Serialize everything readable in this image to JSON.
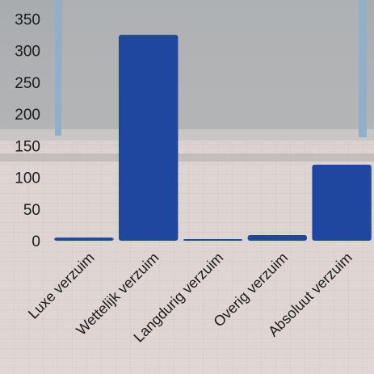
{
  "chart_data": {
    "type": "bar",
    "title": "",
    "xlabel": "",
    "ylabel": "",
    "categories": [
      "Luxe verzuim",
      "Wettelijk verzuim",
      "Langdurig verzuim",
      "Overig verzuim",
      "Absoluut verzuim"
    ],
    "values": [
      5,
      325,
      1,
      9,
      120
    ],
    "ylim": [
      0,
      380
    ],
    "yticks": [
      0,
      50,
      100,
      150,
      200,
      250,
      300,
      350
    ],
    "grid": false,
    "legend": "none",
    "bar_color": "#1f47a0"
  }
}
